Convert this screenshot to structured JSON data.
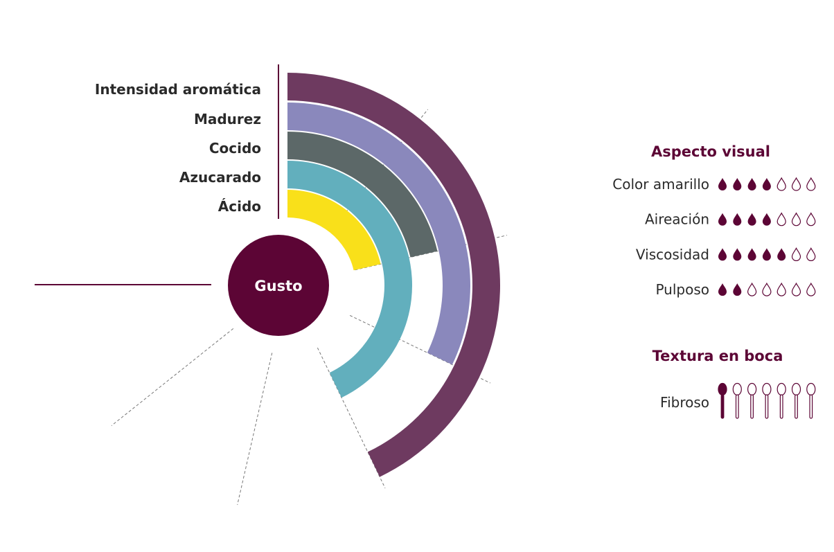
{
  "chart_data": {
    "type": "radial-bar",
    "center_label": "Gusto",
    "scale_max": 7,
    "categories": [
      "Intensidad aromática",
      "Madurez",
      "Cocido",
      "Azucarado",
      "Ácido"
    ],
    "values": [
      4,
      3,
      2,
      4,
      2
    ],
    "colors": [
      "#6e3a60",
      "#8a88bc",
      "#5c6868",
      "#62afbd",
      "#f9e01a"
    ]
  },
  "aspecto_visual": {
    "title": "Aspecto visual",
    "max": 7,
    "items": [
      {
        "label": "Color amarillo",
        "value": 4
      },
      {
        "label": "Aireación",
        "value": 4
      },
      {
        "label": "Viscosidad",
        "value": 5
      },
      {
        "label": "Pulposo",
        "value": 2
      }
    ]
  },
  "textura_en_boca": {
    "title": "Textura en boca",
    "max": 7,
    "items": [
      {
        "label": "Fibroso",
        "value": 1
      }
    ]
  },
  "colors": {
    "accent": "#5c0535",
    "grid": "#777777"
  },
  "icons": {
    "rating": "drop-icon",
    "texture": "spoon-icon"
  }
}
